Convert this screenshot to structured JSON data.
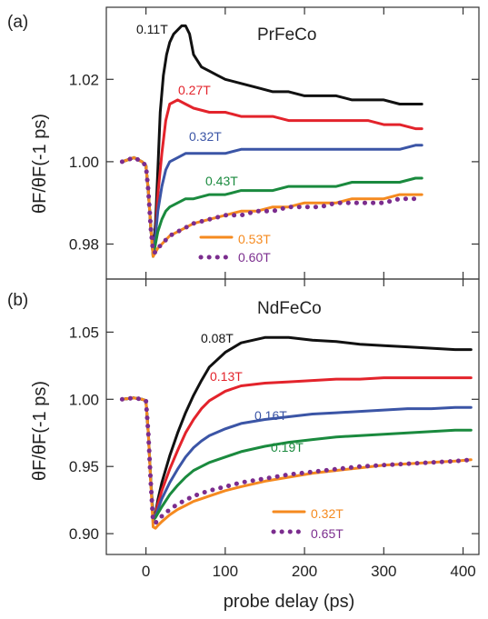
{
  "xlabel": "probe delay (ps)",
  "ylabel": "θF/θF(-1 ps)",
  "chart_data": [
    {
      "type": "line",
      "panel_tag": "(a)",
      "title": "PrFeCo",
      "xlabel": "probe delay (ps)",
      "ylabel": "θF/θF(-1 ps)",
      "xlim": [
        -50,
        420
      ],
      "ylim": [
        0.9715,
        1.0375
      ],
      "yticks": [
        0.98,
        1.0,
        1.02
      ],
      "ytick_labels": [
        "0.98",
        "1.00",
        "1.02"
      ],
      "grid": false,
      "legend": "inline labels",
      "series": [
        {
          "name": "0.11T",
          "color": "#111111",
          "style": "solid",
          "x": [
            -30,
            -15,
            -5,
            0,
            3,
            6,
            9,
            12,
            15,
            18,
            22,
            26,
            30,
            35,
            40,
            45,
            50,
            55,
            60,
            70,
            80,
            90,
            100,
            120,
            140,
            160,
            180,
            200,
            220,
            240,
            260,
            280,
            300,
            320,
            340,
            348
          ],
          "y": [
            1.0,
            1.001,
            1.0,
            0.999,
            0.993,
            0.984,
            0.978,
            0.985,
            0.998,
            1.012,
            1.021,
            1.026,
            1.029,
            1.031,
            1.032,
            1.033,
            1.033,
            1.031,
            1.026,
            1.023,
            1.022,
            1.021,
            1.02,
            1.019,
            1.018,
            1.017,
            1.017,
            1.016,
            1.016,
            1.016,
            1.015,
            1.015,
            1.015,
            1.014,
            1.014,
            1.014
          ]
        },
        {
          "name": "0.27T",
          "color": "#e3232b",
          "style": "solid",
          "x": [
            -30,
            -15,
            -5,
            0,
            3,
            6,
            9,
            12,
            15,
            20,
            25,
            30,
            40,
            50,
            60,
            80,
            100,
            120,
            140,
            160,
            180,
            200,
            220,
            240,
            260,
            280,
            300,
            320,
            340,
            348
          ],
          "y": [
            1.0,
            1.001,
            1.0,
            0.999,
            0.993,
            0.984,
            0.978,
            0.982,
            0.992,
            1.002,
            1.01,
            1.014,
            1.015,
            1.014,
            1.013,
            1.012,
            1.012,
            1.011,
            1.011,
            1.011,
            1.01,
            1.01,
            1.01,
            1.01,
            1.01,
            1.01,
            1.009,
            1.009,
            1.008,
            1.008
          ]
        },
        {
          "name": "0.32T",
          "color": "#3b55a6",
          "style": "solid",
          "x": [
            -30,
            -15,
            -5,
            0,
            3,
            6,
            9,
            12,
            15,
            20,
            25,
            30,
            40,
            50,
            60,
            80,
            100,
            120,
            140,
            160,
            180,
            200,
            220,
            240,
            260,
            280,
            300,
            320,
            340,
            348
          ],
          "y": [
            1.0,
            1.001,
            1.0,
            0.999,
            0.993,
            0.984,
            0.977,
            0.982,
            0.988,
            0.994,
            0.998,
            1.0,
            1.001,
            1.002,
            1.002,
            1.002,
            1.002,
            1.003,
            1.003,
            1.003,
            1.003,
            1.003,
            1.003,
            1.003,
            1.003,
            1.003,
            1.003,
            1.003,
            1.004,
            1.004
          ]
        },
        {
          "name": "0.43T",
          "color": "#1a8a3e",
          "style": "solid",
          "x": [
            -30,
            -15,
            -5,
            0,
            3,
            6,
            9,
            12,
            15,
            20,
            25,
            30,
            40,
            50,
            60,
            80,
            100,
            120,
            140,
            160,
            180,
            200,
            220,
            240,
            260,
            280,
            300,
            320,
            340,
            348
          ],
          "y": [
            1.0,
            1.001,
            1.0,
            0.999,
            0.993,
            0.984,
            0.977,
            0.98,
            0.983,
            0.986,
            0.988,
            0.989,
            0.99,
            0.991,
            0.991,
            0.992,
            0.992,
            0.993,
            0.993,
            0.993,
            0.994,
            0.994,
            0.994,
            0.994,
            0.995,
            0.995,
            0.995,
            0.995,
            0.996,
            0.996
          ]
        },
        {
          "name": "0.53T",
          "color": "#f58a1f",
          "style": "solid",
          "x": [
            -30,
            -15,
            -5,
            0,
            3,
            6,
            9,
            12,
            15,
            20,
            25,
            30,
            40,
            50,
            60,
            80,
            100,
            120,
            140,
            160,
            180,
            200,
            220,
            240,
            260,
            280,
            300,
            320,
            340,
            348
          ],
          "y": [
            1.0,
            1.001,
            1.0,
            0.999,
            0.993,
            0.984,
            0.977,
            0.978,
            0.979,
            0.98,
            0.981,
            0.982,
            0.983,
            0.984,
            0.985,
            0.986,
            0.987,
            0.988,
            0.988,
            0.989,
            0.989,
            0.99,
            0.99,
            0.99,
            0.991,
            0.991,
            0.991,
            0.992,
            0.992,
            0.992
          ]
        },
        {
          "name": "0.60T",
          "color": "#7b2d8e",
          "style": "dotted",
          "x": [
            -30,
            -15,
            -5,
            0,
            3,
            6,
            9,
            12,
            15,
            20,
            25,
            30,
            40,
            50,
            60,
            80,
            100,
            120,
            140,
            160,
            180,
            200,
            220,
            240,
            260,
            280,
            300,
            320,
            340,
            348
          ],
          "y": [
            1.0,
            1.001,
            1.0,
            0.999,
            0.993,
            0.984,
            0.978,
            0.978,
            0.979,
            0.98,
            0.981,
            0.982,
            0.983,
            0.984,
            0.985,
            0.986,
            0.987,
            0.987,
            0.988,
            0.988,
            0.989,
            0.989,
            0.989,
            0.99,
            0.99,
            0.99,
            0.99,
            0.991,
            0.991,
            0.991
          ]
        }
      ]
    },
    {
      "type": "line",
      "panel_tag": "(b)",
      "title": "NdFeCo",
      "xlabel": "probe delay (ps)",
      "ylabel": "θF/θF(-1 ps)",
      "xlim": [
        -50,
        420
      ],
      "ylim": [
        0.8845,
        1.0895
      ],
      "yticks": [
        0.9,
        0.95,
        1.0,
        1.05
      ],
      "ytick_labels": [
        "0.90",
        "0.95",
        "1.00",
        "1.05"
      ],
      "xticks": [
        0,
        100,
        200,
        300,
        400
      ],
      "xtick_labels": [
        "0",
        "100",
        "200",
        "300",
        "400"
      ],
      "grid": false,
      "legend": "inline labels",
      "series": [
        {
          "name": "0.08T",
          "color": "#111111",
          "style": "solid",
          "x": [
            -30,
            -15,
            -5,
            0,
            3,
            6,
            9,
            12,
            15,
            20,
            30,
            40,
            50,
            60,
            70,
            80,
            100,
            120,
            150,
            180,
            210,
            240,
            270,
            300,
            330,
            360,
            390,
            410
          ],
          "y": [
            1.0,
            1.001,
            1.0,
            0.999,
            0.975,
            0.94,
            0.913,
            0.915,
            0.925,
            0.938,
            0.958,
            0.975,
            0.99,
            1.003,
            1.014,
            1.024,
            1.035,
            1.042,
            1.046,
            1.046,
            1.044,
            1.043,
            1.041,
            1.04,
            1.039,
            1.038,
            1.037,
            1.037
          ]
        },
        {
          "name": "0.13T",
          "color": "#e3232b",
          "style": "solid",
          "x": [
            -30,
            -15,
            -5,
            0,
            3,
            6,
            9,
            12,
            15,
            20,
            30,
            40,
            50,
            60,
            70,
            80,
            100,
            120,
            150,
            180,
            210,
            240,
            270,
            300,
            330,
            360,
            390,
            410
          ],
          "y": [
            1.0,
            1.001,
            1.0,
            0.999,
            0.975,
            0.94,
            0.912,
            0.914,
            0.922,
            0.932,
            0.948,
            0.962,
            0.975,
            0.985,
            0.993,
            0.999,
            1.006,
            1.01,
            1.012,
            1.013,
            1.014,
            1.015,
            1.015,
            1.016,
            1.016,
            1.016,
            1.016,
            1.016
          ]
        },
        {
          "name": "0.16T",
          "color": "#3b55a6",
          "style": "solid",
          "x": [
            -30,
            -15,
            -5,
            0,
            3,
            6,
            9,
            12,
            15,
            20,
            30,
            40,
            50,
            60,
            70,
            80,
            100,
            120,
            150,
            180,
            210,
            240,
            270,
            300,
            330,
            360,
            390,
            410
          ],
          "y": [
            1.0,
            1.001,
            1.0,
            0.999,
            0.975,
            0.94,
            0.911,
            0.913,
            0.918,
            0.926,
            0.938,
            0.948,
            0.957,
            0.964,
            0.969,
            0.973,
            0.978,
            0.982,
            0.985,
            0.987,
            0.989,
            0.99,
            0.991,
            0.992,
            0.993,
            0.993,
            0.994,
            0.994
          ]
        },
        {
          "name": "0.19T",
          "color": "#1a8a3e",
          "style": "solid",
          "x": [
            -30,
            -15,
            -5,
            0,
            3,
            6,
            9,
            12,
            15,
            20,
            30,
            40,
            50,
            60,
            70,
            80,
            100,
            120,
            150,
            180,
            210,
            240,
            270,
            300,
            330,
            360,
            390,
            410
          ],
          "y": [
            1.0,
            1.001,
            1.0,
            0.999,
            0.975,
            0.94,
            0.91,
            0.912,
            0.915,
            0.92,
            0.929,
            0.936,
            0.942,
            0.947,
            0.95,
            0.953,
            0.957,
            0.961,
            0.965,
            0.968,
            0.97,
            0.972,
            0.973,
            0.974,
            0.975,
            0.976,
            0.977,
            0.977
          ]
        },
        {
          "name": "0.32T",
          "color": "#f58a1f",
          "style": "solid",
          "x": [
            -30,
            -15,
            -5,
            0,
            3,
            6,
            9,
            12,
            15,
            20,
            30,
            40,
            50,
            60,
            70,
            80,
            100,
            120,
            150,
            180,
            210,
            240,
            270,
            300,
            330,
            360,
            390,
            410
          ],
          "y": [
            1.0,
            1.001,
            1.0,
            0.999,
            0.975,
            0.938,
            0.905,
            0.904,
            0.906,
            0.909,
            0.914,
            0.918,
            0.921,
            0.924,
            0.926,
            0.928,
            0.932,
            0.935,
            0.939,
            0.942,
            0.945,
            0.947,
            0.949,
            0.951,
            0.952,
            0.953,
            0.954,
            0.955
          ]
        },
        {
          "name": "0.65T",
          "color": "#7b2d8e",
          "style": "dotted",
          "x": [
            -30,
            -15,
            -5,
            0,
            3,
            6,
            9,
            12,
            15,
            20,
            30,
            40,
            50,
            60,
            70,
            80,
            100,
            120,
            150,
            180,
            210,
            240,
            270,
            300,
            330,
            360,
            390,
            410
          ],
          "y": [
            1.0,
            1.001,
            1.0,
            0.999,
            0.975,
            0.938,
            0.909,
            0.908,
            0.91,
            0.913,
            0.918,
            0.922,
            0.925,
            0.928,
            0.93,
            0.932,
            0.935,
            0.938,
            0.941,
            0.944,
            0.946,
            0.948,
            0.95,
            0.951,
            0.952,
            0.953,
            0.954,
            0.955
          ]
        }
      ]
    }
  ]
}
